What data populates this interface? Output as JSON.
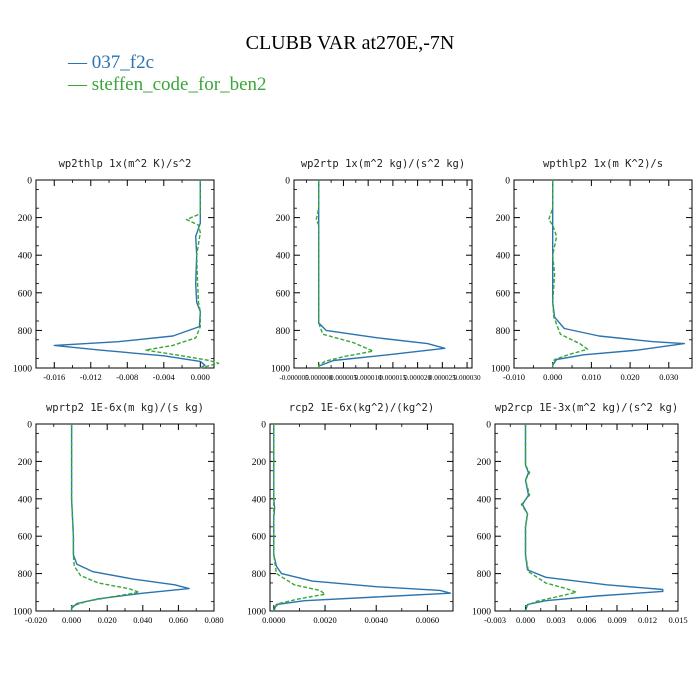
{
  "figure_title": "CLUBB VAR at270E,-7N",
  "legend": [
    {
      "dash": "—",
      "label": "037_f2c",
      "color": "#2a74b0"
    },
    {
      "dash": "—",
      "label": "steffen_code_for_ben2",
      "color": "#3aa63a"
    }
  ],
  "colors": {
    "series1": "#2a74b0",
    "series2": "#3aa63a"
  },
  "chart_data": [
    {
      "type": "line",
      "title": "wp2thlp  1x(m^2 K)/s^2",
      "xlim": [
        -0.018,
        0.0015
      ],
      "ylim": [
        1000,
        0
      ],
      "xticks": [
        -0.016,
        -0.012,
        -0.008,
        -0.004,
        0.0
      ],
      "xtick_labels": [
        "-0.016",
        "-0.012",
        "-0.008",
        "-0.004",
        "0.000"
      ],
      "yticks": [
        0,
        200,
        400,
        600,
        800,
        1000
      ],
      "ytick_labels": [
        "0",
        "200",
        "400",
        "600",
        "800",
        "1000"
      ],
      "series": [
        {
          "name": "037_f2c",
          "color": "#2a74b0",
          "dashed": false,
          "points": [
            [
              0.0,
              0
            ],
            [
              0.0,
              100
            ],
            [
              0.0,
              180
            ],
            [
              0.0,
              230
            ],
            [
              -0.0005,
              300
            ],
            [
              -0.0004,
              400
            ],
            [
              -0.0005,
              550
            ],
            [
              -0.0004,
              650
            ],
            [
              0.0,
              700
            ],
            [
              -0.0001,
              780
            ],
            [
              -0.003,
              830
            ],
            [
              -0.009,
              860
            ],
            [
              -0.016,
              880
            ],
            [
              -0.011,
              905
            ],
            [
              -0.004,
              935
            ],
            [
              0.0,
              965
            ],
            [
              0.0005,
              985
            ],
            [
              0.0,
              1000
            ]
          ]
        },
        {
          "name": "steffen_code_for_ben2",
          "color": "#3aa63a",
          "dashed": true,
          "points": [
            [
              0.0,
              0
            ],
            [
              0.0,
              100
            ],
            [
              0.0,
              180
            ],
            [
              -0.0015,
              210
            ],
            [
              -0.0002,
              240
            ],
            [
              0.0,
              280
            ],
            [
              -0.0004,
              400
            ],
            [
              -0.0003,
              550
            ],
            [
              -0.0002,
              650
            ],
            [
              0.0,
              700
            ],
            [
              0.0,
              780
            ],
            [
              -0.0005,
              840
            ],
            [
              -0.003,
              880
            ],
            [
              -0.006,
              905
            ],
            [
              -0.002,
              935
            ],
            [
              0.001,
              960
            ],
            [
              0.002,
              975
            ],
            [
              0.0,
              1000
            ]
          ]
        }
      ]
    },
    {
      "type": "line",
      "title": "wp2rtp  1x(m^2 kg)/(s^2 kg)",
      "xlim": [
        -5e-06,
        3.1e-05
      ],
      "ylim": [
        1000,
        0
      ],
      "xticks": [
        -5e-06,
        0.0,
        5e-06,
        1e-05,
        1.5e-05,
        2e-05,
        2.5e-05,
        3e-05
      ],
      "xtick_labels": [
        "-0.000005",
        "0.000000",
        "0.000005",
        "0.000010",
        "0.000015",
        "0.000020",
        "0.000025",
        "0.000030"
      ],
      "yticks": [
        0,
        200,
        400,
        600,
        800,
        1000
      ],
      "ytick_labels": [
        "0",
        "200",
        "400",
        "600",
        "800",
        "1000"
      ],
      "series": [
        {
          "name": "037_f2c",
          "color": "#2a74b0",
          "dashed": false,
          "points": [
            [
              0.0,
              0
            ],
            [
              0.0,
              150
            ],
            [
              0.0,
              230
            ],
            [
              0.0,
              400
            ],
            [
              0.0,
              600
            ],
            [
              0.0,
              760
            ],
            [
              1.5e-06,
              800
            ],
            [
              1.2e-05,
              840
            ],
            [
              2.2e-05,
              870
            ],
            [
              2.55e-05,
              895
            ],
            [
              1.4e-05,
              930
            ],
            [
              3e-06,
              960
            ],
            [
              0.0,
              990
            ],
            [
              0.0,
              1000
            ]
          ]
        },
        {
          "name": "steffen_code_for_ben2",
          "color": "#3aa63a",
          "dashed": true,
          "points": [
            [
              0.0,
              0
            ],
            [
              0.0,
              150
            ],
            [
              -5e-07,
              210
            ],
            [
              0.0,
              240
            ],
            [
              0.0,
              400
            ],
            [
              0.0,
              600
            ],
            [
              0.0,
              760
            ],
            [
              8e-07,
              820
            ],
            [
              7e-06,
              865
            ],
            [
              1.1e-05,
              910
            ],
            [
              5e-06,
              940
            ],
            [
              1.2e-06,
              965
            ],
            [
              0.0,
              990
            ],
            [
              0.0,
              1000
            ]
          ]
        }
      ]
    },
    {
      "type": "line",
      "title": "wpthlp2  1x(m K^2)/s",
      "xlim": [
        -0.01,
        0.036
      ],
      "ylim": [
        1000,
        0
      ],
      "xticks": [
        -0.01,
        0.0,
        0.01,
        0.02,
        0.03
      ],
      "xtick_labels": [
        "-0.010",
        "0.000",
        "0.010",
        "0.020",
        "0.030"
      ],
      "yticks": [
        0,
        200,
        400,
        600,
        800,
        1000
      ],
      "ytick_labels": [
        "0",
        "200",
        "400",
        "600",
        "800",
        "1000"
      ],
      "series": [
        {
          "name": "037_f2c",
          "color": "#2a74b0",
          "dashed": false,
          "points": [
            [
              0.0,
              0
            ],
            [
              0.0,
              150
            ],
            [
              0.0,
              220
            ],
            [
              0.0,
              300
            ],
            [
              0.0,
              400
            ],
            [
              0.0,
              500
            ],
            [
              0.0,
              650
            ],
            [
              0.0005,
              730
            ],
            [
              0.003,
              790
            ],
            [
              0.012,
              830
            ],
            [
              0.026,
              860
            ],
            [
              0.034,
              870
            ],
            [
              0.022,
              905
            ],
            [
              0.008,
              930
            ],
            [
              0.001,
              955
            ],
            [
              0.0,
              985
            ],
            [
              0.0,
              1000
            ]
          ]
        },
        {
          "name": "steffen_code_for_ben2",
          "color": "#3aa63a",
          "dashed": true,
          "points": [
            [
              0.0,
              0
            ],
            [
              0.0,
              150
            ],
            [
              -0.001,
              210
            ],
            [
              0.0,
              240
            ],
            [
              0.001,
              300
            ],
            [
              0.0,
              400
            ],
            [
              0.0005,
              500
            ],
            [
              0.0,
              650
            ],
            [
              0.0003,
              730
            ],
            [
              0.002,
              820
            ],
            [
              0.007,
              870
            ],
            [
              0.009,
              900
            ],
            [
              0.004,
              930
            ],
            [
              0.0005,
              955
            ],
            [
              0.0,
              980
            ],
            [
              0.0,
              1000
            ]
          ]
        }
      ]
    },
    {
      "type": "line",
      "title": "wprtp2  1E-6x(m kg)/(s kg)",
      "xlim": [
        -0.02,
        0.08
      ],
      "ylim": [
        1000,
        0
      ],
      "xticks": [
        -0.02,
        0.0,
        0.02,
        0.04,
        0.06,
        0.08
      ],
      "xtick_labels": [
        "-0.020",
        "0.000",
        "0.020",
        "0.040",
        "0.060",
        "0.080"
      ],
      "yticks": [
        0,
        200,
        400,
        600,
        800,
        1000
      ],
      "ytick_labels": [
        "0",
        "200",
        "400",
        "600",
        "800",
        "1000"
      ],
      "series": [
        {
          "name": "037_f2c",
          "color": "#2a74b0",
          "dashed": false,
          "points": [
            [
              0.0,
              0
            ],
            [
              0.0,
              200
            ],
            [
              0.0,
              400
            ],
            [
              0.001,
              600
            ],
            [
              0.001,
              700
            ],
            [
              0.003,
              750
            ],
            [
              0.012,
              790
            ],
            [
              0.035,
              830
            ],
            [
              0.058,
              860
            ],
            [
              0.066,
              880
            ],
            [
              0.04,
              905
            ],
            [
              0.015,
              935
            ],
            [
              0.003,
              960
            ],
            [
              0.0,
              985
            ],
            [
              0.0,
              1000
            ]
          ]
        },
        {
          "name": "steffen_code_for_ben2",
          "color": "#3aa63a",
          "dashed": true,
          "points": [
            [
              0.0,
              0
            ],
            [
              0.0,
              200
            ],
            [
              0.0,
              400
            ],
            [
              0.001,
              600
            ],
            [
              0.001,
              700
            ],
            [
              0.0015,
              760
            ],
            [
              0.005,
              810
            ],
            [
              0.015,
              850
            ],
            [
              0.032,
              880
            ],
            [
              0.038,
              900
            ],
            [
              0.022,
              925
            ],
            [
              0.008,
              950
            ],
            [
              0.0,
              975
            ],
            [
              0.0,
              1000
            ]
          ]
        }
      ]
    },
    {
      "type": "line",
      "title": "rcp2  1E-6x(kg^2)/(kg^2)",
      "xlim": [
        -0.00015,
        0.007
      ],
      "ylim": [
        1000,
        0
      ],
      "xticks": [
        0.0,
        0.002,
        0.004,
        0.006
      ],
      "xtick_labels": [
        "0.0000",
        "0.0020",
        "0.0040",
        "0.0060"
      ],
      "yticks": [
        0,
        200,
        400,
        600,
        800,
        1000
      ],
      "ytick_labels": [
        "0",
        "200",
        "400",
        "600",
        "800",
        "1000"
      ],
      "series": [
        {
          "name": "037_f2c",
          "color": "#2a74b0",
          "dashed": false,
          "points": [
            [
              0.0,
              0
            ],
            [
              0.0,
              300
            ],
            [
              0.0,
              400
            ],
            [
              3e-05,
              450
            ],
            [
              0.0,
              500
            ],
            [
              0.0,
              700
            ],
            [
              0.0001,
              760
            ],
            [
              0.0003,
              800
            ],
            [
              0.0015,
              840
            ],
            [
              0.004,
              870
            ],
            [
              0.0065,
              890
            ],
            [
              0.0069,
              905
            ],
            [
              0.004,
              925
            ],
            [
              0.0012,
              945
            ],
            [
              0.0001,
              965
            ],
            [
              0.0,
              1000
            ]
          ]
        },
        {
          "name": "steffen_code_for_ben2",
          "color": "#3aa63a",
          "dashed": true,
          "points": [
            [
              0.0,
              0
            ],
            [
              0.0,
              300
            ],
            [
              0.0,
              500
            ],
            [
              0.0,
              700
            ],
            [
              0.0001,
              800
            ],
            [
              0.0008,
              860
            ],
            [
              0.0018,
              890
            ],
            [
              0.002,
              910
            ],
            [
              0.001,
              935
            ],
            [
              0.0002,
              960
            ],
            [
              0.0,
              985
            ],
            [
              0.0,
              1000
            ]
          ]
        }
      ]
    },
    {
      "type": "line",
      "title": "wp2rcp  1E-3x(m^2 kg)/(s^2 kg)",
      "xlim": [
        -0.003,
        0.015
      ],
      "ylim": [
        1000,
        0
      ],
      "xticks": [
        -0.003,
        0.0,
        0.003,
        0.006,
        0.009,
        0.012,
        0.015
      ],
      "xtick_labels": [
        "-0.003",
        "0.000",
        "0.003",
        "0.006",
        "0.009",
        "0.012",
        "0.015"
      ],
      "yticks": [
        0,
        200,
        400,
        600,
        800,
        1000
      ],
      "ytick_labels": [
        "0",
        "200",
        "400",
        "600",
        "800",
        "1000"
      ],
      "series": [
        {
          "name": "037_f2c",
          "color": "#2a74b0",
          "dashed": false,
          "points": [
            [
              0.0,
              0
            ],
            [
              0.0,
              150
            ],
            [
              0.0,
              220
            ],
            [
              0.0003,
              260
            ],
            [
              0.0,
              300
            ],
            [
              0.0003,
              380
            ],
            [
              -0.0003,
              430
            ],
            [
              0.0002,
              480
            ],
            [
              0.0,
              550
            ],
            [
              0.0,
              700
            ],
            [
              0.0002,
              780
            ],
            [
              0.002,
              820
            ],
            [
              0.008,
              860
            ],
            [
              0.0135,
              885
            ],
            [
              0.0135,
              895
            ],
            [
              0.007,
              920
            ],
            [
              0.002,
              945
            ],
            [
              0.0002,
              965
            ],
            [
              0.0,
              1000
            ]
          ]
        },
        {
          "name": "steffen_code_for_ben2",
          "color": "#3aa63a",
          "dashed": true,
          "points": [
            [
              0.0,
              0
            ],
            [
              0.0,
              150
            ],
            [
              0.0,
              220
            ],
            [
              0.0004,
              260
            ],
            [
              0.0,
              300
            ],
            [
              0.0004,
              380
            ],
            [
              -0.0004,
              430
            ],
            [
              0.0002,
              480
            ],
            [
              0.0,
              550
            ],
            [
              0.0,
              700
            ],
            [
              0.0003,
              790
            ],
            [
              0.002,
              850
            ],
            [
              0.004,
              880
            ],
            [
              0.005,
              900
            ],
            [
              0.003,
              925
            ],
            [
              0.001,
              950
            ],
            [
              0.0,
              975
            ],
            [
              0.0,
              1000
            ]
          ]
        }
      ]
    }
  ]
}
